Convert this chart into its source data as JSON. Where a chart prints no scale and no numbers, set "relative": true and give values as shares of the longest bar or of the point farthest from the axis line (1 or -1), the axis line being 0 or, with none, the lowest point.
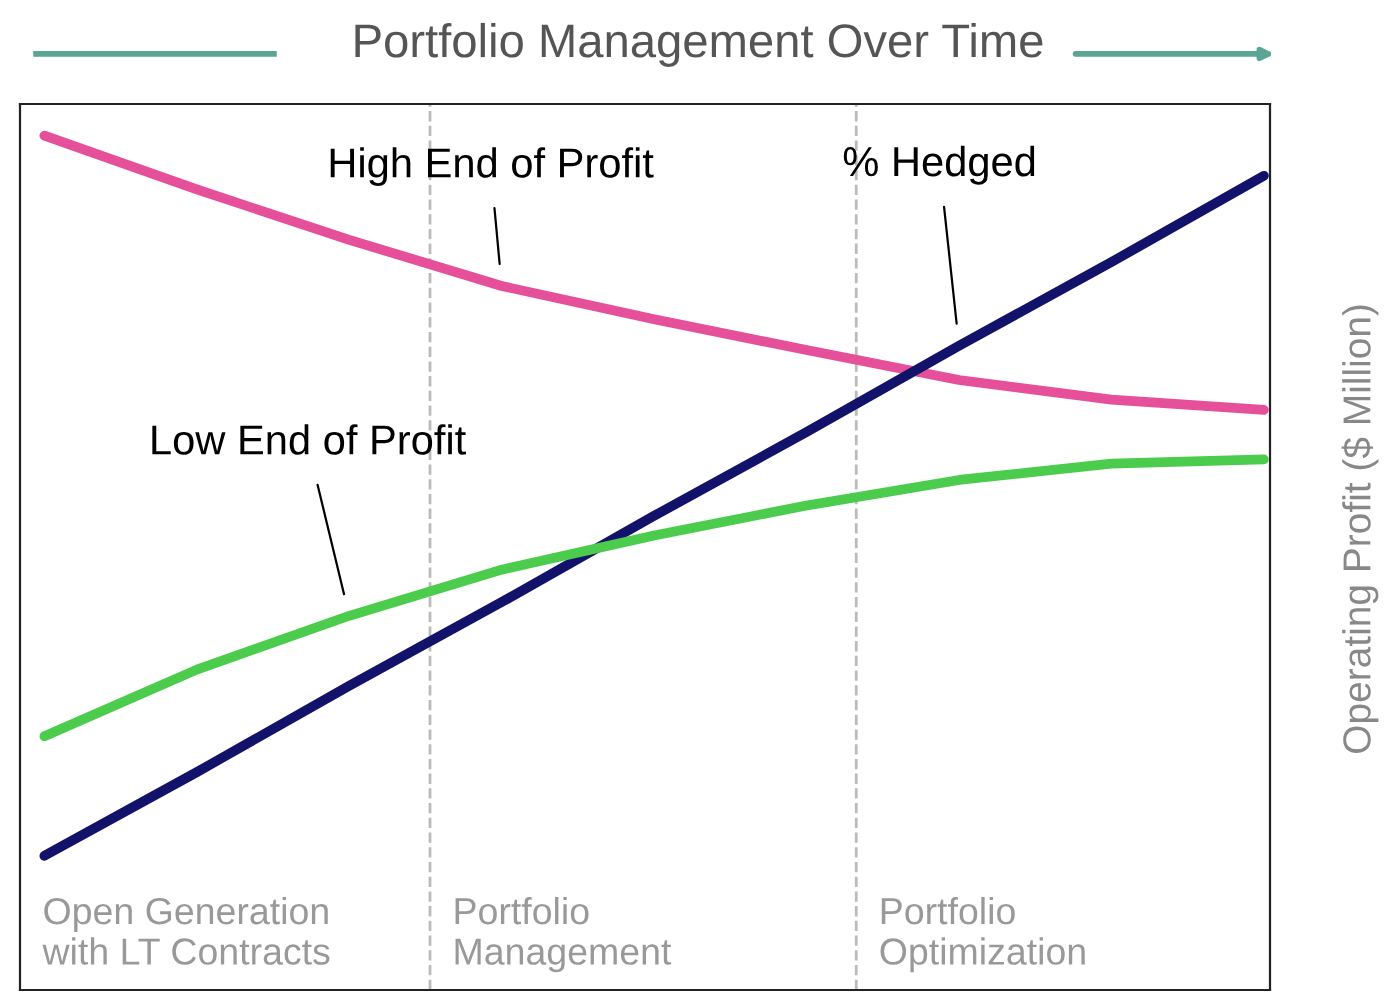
{
  "chart_data": {
    "type": "line",
    "title": "Portfolio Management Over Time",
    "ylabel": "Operating Profit ($ Million)",
    "relative": true,
    "marker": "none",
    "line_style": "solid",
    "categories": [
      null,
      null,
      null,
      null,
      null,
      null,
      null,
      null,
      null
    ],
    "series": [
      {
        "name": "High End of Profit",
        "color": "#e64f9a",
        "values": [
          1,
          0.937,
          0.878,
          0.824,
          0.785,
          0.749,
          0.714,
          0.691,
          0.679
        ]
      },
      {
        "name": "% Hedged",
        "color": "#12126b",
        "values": [
          0.157,
          0.255,
          0.356,
          0.454,
          0.555,
          0.653,
          0.754,
          0.852,
          0.953
        ]
      },
      {
        "name": "Low End of Profit",
        "color": "#4ccc4c",
        "values": [
          0.297,
          0.375,
          0.438,
          0.492,
          0.532,
          0.567,
          0.597,
          0.616,
          0.621
        ]
      }
    ],
    "annotations": [
      "Open Generation\nwith LT Contracts",
      "Portfolio\nManagement",
      "Portfolio\nOptimization"
    ]
  }
}
